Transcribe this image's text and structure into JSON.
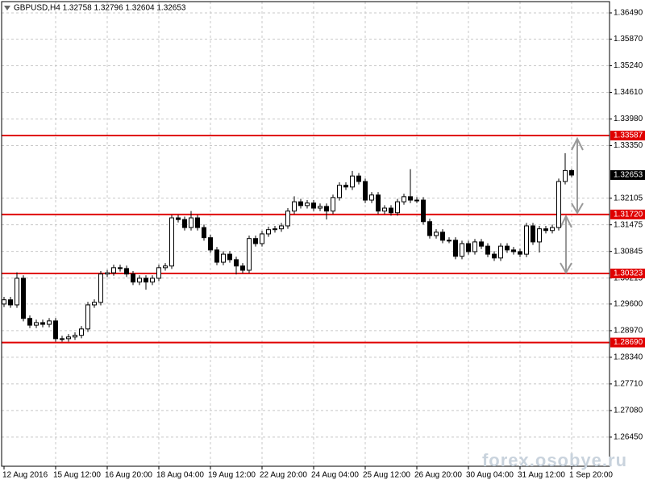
{
  "chart_data": {
    "type": "candlestick",
    "title": "GBPUSD,H4  1.32758 1.32796 1.32604 1.32653",
    "watermark": "forex.osobye.ru",
    "categories": [
      "12 Aug 2016",
      null,
      null,
      null,
      null,
      null,
      null,
      null,
      "15 Aug 12:00",
      null,
      null,
      null,
      null,
      null,
      null,
      null,
      "16 Aug 20:00",
      null,
      null,
      null,
      null,
      null,
      null,
      null,
      "18 Aug 04:00",
      null,
      null,
      null,
      null,
      null,
      null,
      null,
      "19 Aug 12:00",
      null,
      null,
      null,
      null,
      null,
      null,
      null,
      "22 Aug 20:00",
      null,
      null,
      null,
      null,
      null,
      null,
      null,
      "24 Aug 04:00",
      null,
      null,
      null,
      null,
      null,
      null,
      null,
      "25 Aug 12:00",
      null,
      null,
      null,
      null,
      null,
      null,
      null,
      "26 Aug 20:00",
      null,
      null,
      null,
      null,
      null,
      null,
      null,
      "30 Aug 04:00",
      null,
      null,
      null,
      null,
      null,
      null,
      null,
      "31 Aug 12:00",
      null,
      null,
      null,
      null,
      null,
      null,
      null,
      "1 Sep 20:00"
    ],
    "open": [
      1.296,
      1.297,
      1.2958,
      1.3021,
      1.2926,
      1.291,
      1.2916,
      1.2912,
      1.292,
      1.2878,
      1.2878,
      1.2882,
      1.2886,
      1.2901,
      1.2958,
      1.2964,
      1.3031,
      1.3034,
      1.3046,
      1.3044,
      1.3031,
      1.3012,
      1.3021,
      1.3012,
      1.3021,
      1.3046,
      1.305,
      1.3164,
      1.316,
      1.3141,
      1.3164,
      1.3141,
      1.3117,
      1.3088,
      1.3059,
      1.3078,
      1.3065,
      1.305,
      1.304,
      1.3115,
      1.3103,
      1.3126,
      1.3136,
      1.3138,
      1.3145,
      1.318,
      1.3202,
      1.3193,
      1.3199,
      1.3187,
      1.3191,
      1.318,
      1.3212,
      1.3241,
      1.3237,
      1.3263,
      1.325,
      1.3206,
      1.3218,
      1.318,
      1.3187,
      1.3176,
      1.3202,
      1.3214,
      1.3206,
      1.3206,
      1.3155,
      1.3122,
      1.313,
      1.3111,
      1.3111,
      1.3073,
      1.3103,
      1.3084,
      1.3107,
      1.3097,
      1.3078,
      1.3069,
      1.3097,
      1.3088,
      1.3084,
      1.3078,
      1.3145,
      1.3107,
      1.3138,
      1.3134,
      1.3141,
      1.325,
      1.32758
    ],
    "high": [
      1.2977,
      1.2977,
      1.3035,
      1.3028,
      1.2933,
      1.2923,
      1.2923,
      1.2927,
      1.2927,
      1.2885,
      1.2889,
      1.2893,
      1.2908,
      1.2965,
      1.2971,
      1.3038,
      1.3041,
      1.3053,
      1.3053,
      1.3051,
      1.3038,
      1.3028,
      1.3028,
      1.3028,
      1.3053,
      1.3057,
      1.3171,
      1.3171,
      1.3167,
      1.318,
      1.3171,
      1.3148,
      1.3124,
      1.3095,
      1.3085,
      1.3085,
      1.3072,
      1.3057,
      1.3122,
      1.3122,
      1.3133,
      1.3143,
      1.3145,
      1.3152,
      1.3187,
      1.3215,
      1.3209,
      1.3206,
      1.3206,
      1.3198,
      1.3198,
      1.3219,
      1.3248,
      1.3248,
      1.3275,
      1.327,
      1.3257,
      1.3225,
      1.3225,
      1.3194,
      1.3194,
      1.3209,
      1.3221,
      1.3279,
      1.3213,
      1.3213,
      1.3162,
      1.3137,
      1.3137,
      1.3118,
      1.3118,
      1.311,
      1.311,
      1.3114,
      1.3114,
      1.3104,
      1.3085,
      1.3104,
      1.3104,
      1.3095,
      1.3091,
      1.3152,
      1.3152,
      1.3145,
      1.3145,
      1.3148,
      1.3257,
      1.3317,
      1.32796
    ],
    "low": [
      1.2953,
      1.2951,
      1.2951,
      1.2919,
      1.2903,
      1.2903,
      1.2905,
      1.2905,
      1.2871,
      1.2871,
      1.2871,
      1.2875,
      1.2879,
      1.2894,
      1.2951,
      1.2957,
      1.3024,
      1.3027,
      1.3037,
      1.3024,
      1.3005,
      1.3005,
      1.2994,
      1.3005,
      1.3014,
      1.3039,
      1.3043,
      1.3153,
      1.3134,
      1.3134,
      1.3134,
      1.311,
      1.3081,
      1.3052,
      1.3052,
      1.3058,
      1.303,
      1.3033,
      1.3033,
      1.3096,
      1.3096,
      1.3119,
      1.3129,
      1.3131,
      1.3138,
      1.3173,
      1.3186,
      1.3186,
      1.318,
      1.318,
      1.316,
      1.3173,
      1.3205,
      1.323,
      1.323,
      1.3243,
      1.3199,
      1.3199,
      1.3173,
      1.3173,
      1.3169,
      1.3169,
      1.3195,
      1.3199,
      1.3199,
      1.3148,
      1.3115,
      1.3115,
      1.3104,
      1.3104,
      1.3066,
      1.3066,
      1.3077,
      1.3077,
      1.309,
      1.3071,
      1.3062,
      1.3062,
      1.3081,
      1.3077,
      1.3071,
      1.3071,
      1.31,
      1.3082,
      1.3127,
      1.3127,
      1.3134,
      1.3243,
      1.32604
    ],
    "close": [
      1.297,
      1.2958,
      1.3021,
      1.2926,
      1.291,
      1.2916,
      1.2912,
      1.292,
      1.2878,
      1.2878,
      1.2882,
      1.2886,
      1.2901,
      1.2958,
      1.2964,
      1.3031,
      1.3034,
      1.3046,
      1.3044,
      1.3031,
      1.3012,
      1.3021,
      1.3012,
      1.3021,
      1.3046,
      1.305,
      1.3164,
      1.316,
      1.3141,
      1.3164,
      1.3141,
      1.3117,
      1.3088,
      1.3059,
      1.3078,
      1.3065,
      1.305,
      1.304,
      1.3115,
      1.3103,
      1.3126,
      1.3136,
      1.3138,
      1.3145,
      1.318,
      1.3202,
      1.3193,
      1.3199,
      1.3187,
      1.3191,
      1.318,
      1.3212,
      1.3241,
      1.3237,
      1.3263,
      1.325,
      1.3206,
      1.3218,
      1.318,
      1.3187,
      1.3176,
      1.3202,
      1.3214,
      1.3206,
      1.3206,
      1.3155,
      1.3122,
      1.313,
      1.3111,
      1.3111,
      1.3073,
      1.3103,
      1.3084,
      1.3107,
      1.3097,
      1.3078,
      1.3069,
      1.3097,
      1.3088,
      1.3084,
      1.3078,
      1.3145,
      1.3107,
      1.3138,
      1.3134,
      1.3141,
      1.325,
      1.3276,
      1.32653
    ],
    "ylim": [
      1.25761,
      1.36757
    ],
    "yticks": [
      {
        "value": 1.3649,
        "label": "1.36490"
      },
      {
        "value": 1.3587,
        "label": "1.35870"
      },
      {
        "value": 1.3524,
        "label": "1.35240"
      },
      {
        "value": 1.3461,
        "label": "1.34610"
      },
      {
        "value": 1.3398,
        "label": "1.33980"
      },
      {
        "value": 1.3335,
        "label": "1.33350"
      },
      {
        "value": 1.32105,
        "label": "1.32105"
      },
      {
        "value": 1.31475,
        "label": "1.31475"
      },
      {
        "value": 1.30845,
        "label": "1.30845"
      },
      {
        "value": 1.30215,
        "label": "1.30215"
      },
      {
        "value": 1.296,
        "label": "1.29600"
      },
      {
        "value": 1.2897,
        "label": "1.28970"
      },
      {
        "value": 1.2834,
        "label": "1.28340"
      },
      {
        "value": 1.2771,
        "label": "1.27710"
      },
      {
        "value": 1.2708,
        "label": "1.27080"
      },
      {
        "value": 1.2645,
        "label": "1.26450"
      }
    ],
    "levels": [
      1.33587,
      {
        "value": 1.3172,
        "label": "1.31720"
      },
      1.30323,
      {
        "value": 1.2869,
        "label": "1.28690"
      }
    ],
    "level_color": "#e00000",
    "last_price": 1.32653,
    "grid": true
  }
}
